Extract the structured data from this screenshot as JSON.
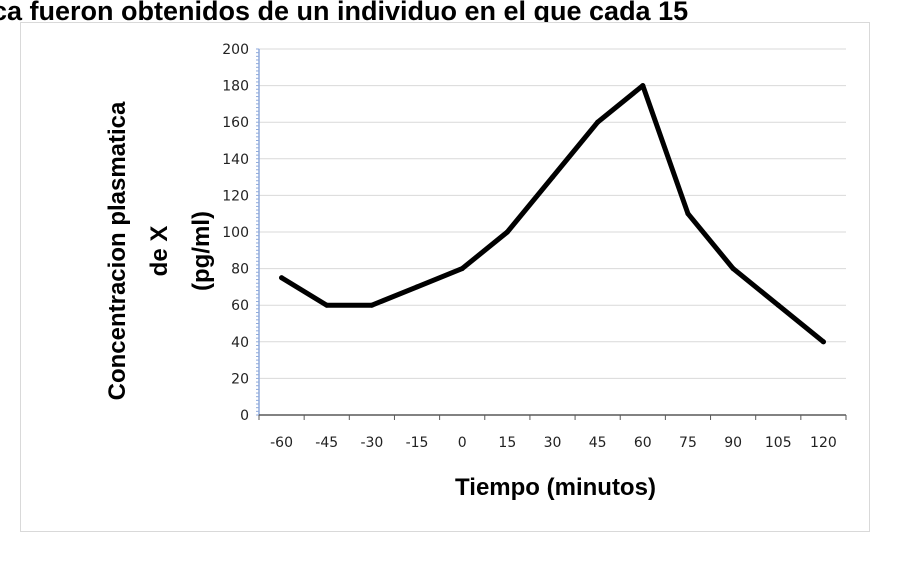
{
  "caption": "ca fueron obtenidos de un individuo en el que cada 15",
  "chart_data": {
    "type": "line",
    "title": "",
    "xlabel": "Tiempo (minutos)",
    "ylabel": [
      "Concentracion plasmatica",
      "de X",
      "(pg/ml)"
    ],
    "x": [
      -60,
      -45,
      -30,
      -15,
      0,
      15,
      30,
      45,
      60,
      75,
      90,
      105,
      120
    ],
    "x_tick_labels": [
      "-60",
      "-45",
      "-30",
      "-15",
      "0",
      "15",
      "30",
      "45",
      "60",
      "75",
      "90",
      "105",
      "120"
    ],
    "series": [
      {
        "values": [
          75,
          60,
          60,
          70,
          80,
          100,
          130,
          160,
          180,
          110,
          80,
          60,
          40
        ],
        "color": "#000000"
      }
    ],
    "ylim": [
      0,
      200
    ],
    "y_ticks": [
      0,
      20,
      40,
      60,
      80,
      100,
      120,
      140,
      160,
      180,
      200
    ],
    "grid": "horizontal",
    "grid_color": "#d9d9d9",
    "legend": "none"
  }
}
